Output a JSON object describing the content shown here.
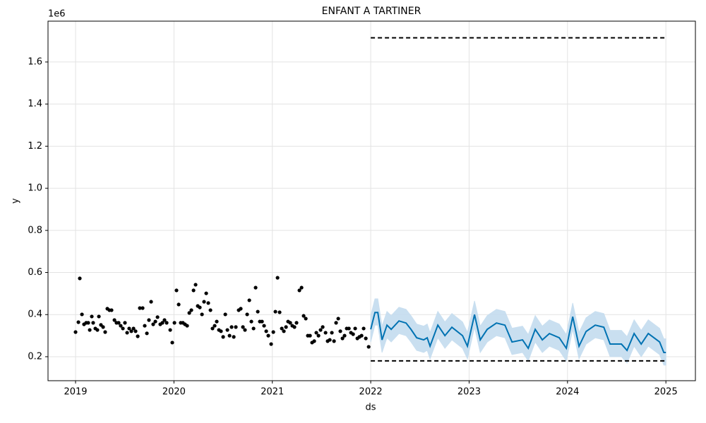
{
  "chart_data": {
    "type": "forecast",
    "title": "ENFANT A TARTINER",
    "xlabel": "ds",
    "ylabel": "y",
    "y_offset_label": "1e6",
    "xlim": [
      2018.72,
      2025.3
    ],
    "ylim": [
      0.086,
      1.794
    ],
    "xticks": [
      2019,
      2020,
      2021,
      2022,
      2023,
      2024,
      2025
    ],
    "yticks": [
      0.2,
      0.4,
      0.6,
      0.8,
      {
        "value": 1,
        "label": "1.0"
      },
      1.2,
      1.4,
      1.6
    ],
    "grid": true,
    "observed": {
      "color": "#000000",
      "x": [
        2019.0,
        2019.029,
        2019.043,
        2019.065,
        2019.086,
        2019.108,
        2019.129,
        2019.144,
        2019.165,
        2019.179,
        2019.201,
        2019.222,
        2019.237,
        2019.258,
        2019.28,
        2019.301,
        2019.323,
        2019.344,
        2019.366,
        2019.395,
        2019.416,
        2019.438,
        2019.459,
        2019.481,
        2019.502,
        2019.524,
        2019.545,
        2019.567,
        2019.589,
        2019.61,
        2019.632,
        2019.653,
        2019.682,
        2019.703,
        2019.725,
        2019.746,
        2019.768,
        2019.789,
        2019.811,
        2019.833,
        2019.861,
        2019.883,
        2019.904,
        2019.926,
        2019.962,
        2019.983,
        2020.005,
        2020.026,
        2020.048,
        2020.069,
        2020.091,
        2020.112,
        2020.134,
        2020.156,
        2020.177,
        2020.199,
        2020.22,
        2020.242,
        2020.263,
        2020.285,
        2020.306,
        2020.328,
        2020.349,
        2020.371,
        2020.392,
        2020.414,
        2020.435,
        2020.457,
        2020.478,
        2020.5,
        2020.522,
        2020.543,
        2020.565,
        2020.586,
        2020.608,
        2020.629,
        2020.658,
        2020.679,
        2020.701,
        2020.722,
        2020.744,
        2020.766,
        2020.787,
        2020.809,
        2020.83,
        2020.852,
        2020.873,
        2020.895,
        2020.916,
        2020.938,
        2020.959,
        2020.988,
        2021.01,
        2021.031,
        2021.053,
        2021.074,
        2021.096,
        2021.117,
        2021.139,
        2021.16,
        2021.182,
        2021.203,
        2021.225,
        2021.246,
        2021.275,
        2021.297,
        2021.318,
        2021.34,
        2021.361,
        2021.383,
        2021.404,
        2021.426,
        2021.447,
        2021.469,
        2021.49,
        2021.512,
        2021.541,
        2021.562,
        2021.584,
        2021.605,
        2021.627,
        2021.648,
        2021.67,
        2021.691,
        2021.713,
        2021.734,
        2021.756,
        2021.778,
        2021.799,
        2021.821,
        2021.842,
        2021.864,
        2021.885,
        2021.907,
        2021.928,
        2021.95,
        2021.979
      ],
      "values": [
        0.317,
        0.364,
        0.572,
        0.401,
        0.354,
        0.361,
        0.361,
        0.327,
        0.391,
        0.361,
        0.334,
        0.327,
        0.391,
        0.351,
        0.341,
        0.317,
        0.428,
        0.421,
        0.421,
        0.374,
        0.361,
        0.361,
        0.347,
        0.334,
        0.361,
        0.314,
        0.334,
        0.321,
        0.334,
        0.321,
        0.297,
        0.431,
        0.431,
        0.347,
        0.311,
        0.374,
        0.461,
        0.354,
        0.367,
        0.388,
        0.354,
        0.361,
        0.374,
        0.361,
        0.327,
        0.267,
        0.361,
        0.515,
        0.448,
        0.361,
        0.361,
        0.354,
        0.347,
        0.408,
        0.421,
        0.515,
        0.542,
        0.441,
        0.434,
        0.401,
        0.461,
        0.501,
        0.455,
        0.421,
        0.334,
        0.347,
        0.367,
        0.327,
        0.321,
        0.294,
        0.401,
        0.327,
        0.3,
        0.341,
        0.294,
        0.341,
        0.421,
        0.428,
        0.341,
        0.327,
        0.401,
        0.468,
        0.367,
        0.334,
        0.528,
        0.414,
        0.367,
        0.367,
        0.347,
        0.321,
        0.3,
        0.26,
        0.317,
        0.414,
        0.575,
        0.411,
        0.334,
        0.321,
        0.341,
        0.367,
        0.361,
        0.347,
        0.341,
        0.361,
        0.515,
        0.528,
        0.394,
        0.381,
        0.3,
        0.3,
        0.267,
        0.274,
        0.314,
        0.3,
        0.327,
        0.341,
        0.314,
        0.274,
        0.28,
        0.314,
        0.274,
        0.361,
        0.381,
        0.321,
        0.287,
        0.3,
        0.334,
        0.334,
        0.314,
        0.307,
        0.334,
        0.287,
        0.294,
        0.3,
        0.334,
        0.287,
        0.247
      ]
    },
    "forecast": {
      "color": "#0072b2",
      "band_color": "#c4dcef",
      "x": [
        2022.0,
        2022.043,
        2022.072,
        2022.115,
        2022.165,
        2022.208,
        2022.287,
        2022.359,
        2022.409,
        2022.467,
        2022.538,
        2022.574,
        2022.603,
        2022.682,
        2022.754,
        2022.825,
        2022.933,
        2022.983,
        2023.055,
        2023.113,
        2023.184,
        2023.278,
        2023.364,
        2023.436,
        2023.543,
        2023.601,
        2023.672,
        2023.744,
        2023.816,
        2023.916,
        2023.988,
        2024.053,
        2024.117,
        2024.189,
        2024.282,
        2024.369,
        2024.433,
        2024.548,
        2024.605,
        2024.677,
        2024.749,
        2024.821,
        2024.936,
        2024.979,
        2025.0
      ],
      "values": [
        0.33,
        0.41,
        0.41,
        0.28,
        0.35,
        0.33,
        0.37,
        0.36,
        0.33,
        0.29,
        0.28,
        0.29,
        0.25,
        0.35,
        0.3,
        0.34,
        0.3,
        0.25,
        0.4,
        0.28,
        0.33,
        0.36,
        0.35,
        0.27,
        0.28,
        0.24,
        0.33,
        0.28,
        0.31,
        0.29,
        0.24,
        0.39,
        0.25,
        0.32,
        0.35,
        0.34,
        0.26,
        0.26,
        0.23,
        0.31,
        0.26,
        0.31,
        0.27,
        0.22,
        0.22
      ],
      "upper": [
        0.395,
        0.475,
        0.475,
        0.345,
        0.415,
        0.395,
        0.435,
        0.425,
        0.395,
        0.355,
        0.345,
        0.355,
        0.315,
        0.415,
        0.365,
        0.405,
        0.365,
        0.315,
        0.465,
        0.345,
        0.395,
        0.425,
        0.415,
        0.335,
        0.345,
        0.305,
        0.395,
        0.345,
        0.375,
        0.355,
        0.305,
        0.455,
        0.315,
        0.385,
        0.415,
        0.405,
        0.325,
        0.325,
        0.295,
        0.375,
        0.325,
        0.375,
        0.335,
        0.285,
        0.285
      ],
      "lower": [
        0.27,
        0.35,
        0.35,
        0.22,
        0.29,
        0.27,
        0.31,
        0.3,
        0.27,
        0.23,
        0.22,
        0.23,
        0.19,
        0.29,
        0.24,
        0.28,
        0.24,
        0.19,
        0.34,
        0.22,
        0.27,
        0.3,
        0.29,
        0.21,
        0.22,
        0.18,
        0.27,
        0.22,
        0.25,
        0.23,
        0.18,
        0.33,
        0.19,
        0.26,
        0.29,
        0.28,
        0.2,
        0.2,
        0.17,
        0.25,
        0.2,
        0.25,
        0.21,
        0.16,
        0.16
      ]
    },
    "cap": {
      "color": "#000000",
      "x": [
        2022,
        2025
      ],
      "values": [
        1.715,
        1.715
      ]
    },
    "floor": {
      "color": "#000000",
      "x": [
        2022,
        2025
      ],
      "values": [
        0.18,
        0.18
      ]
    }
  }
}
